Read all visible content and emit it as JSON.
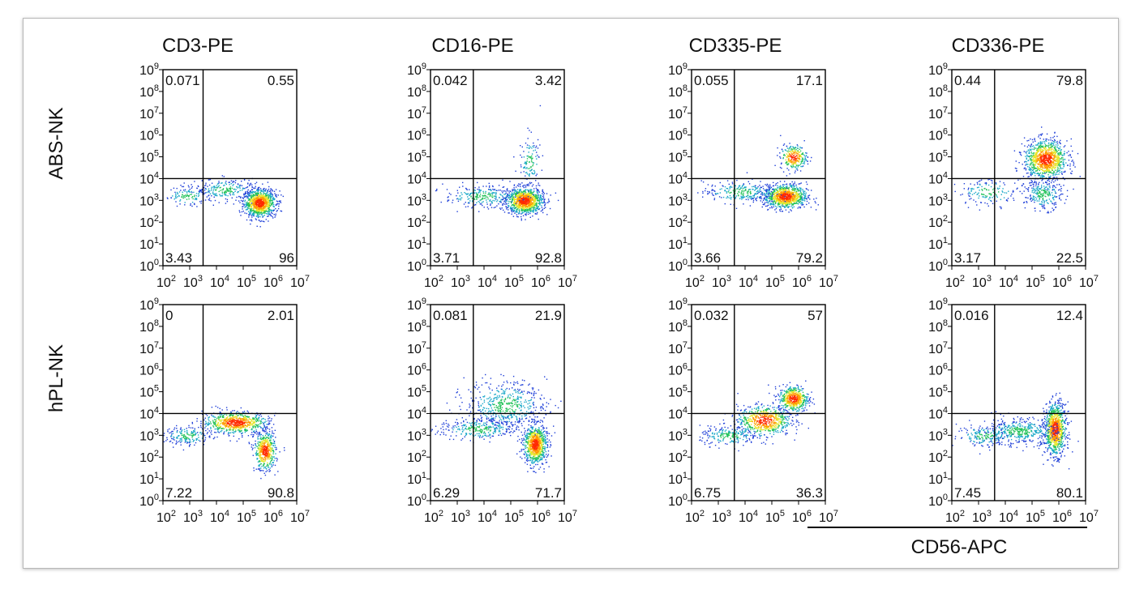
{
  "figure": {
    "x_axis_label": "CD56-APC",
    "column_titles": [
      "CD3-PE",
      "CD16-PE",
      "CD335-PE",
      "CD336-PE"
    ],
    "row_titles": [
      "ABS-NK",
      "hPL-NK"
    ]
  },
  "chart_data": [
    {
      "type": "scatter",
      "row": "ABS-NK",
      "column": "CD3-PE",
      "xlabel": "CD56-APC",
      "ylabel": "CD3-PE",
      "x_log_range": [
        2,
        7
      ],
      "y_log_range": [
        0,
        9
      ],
      "x_gate": 3.5,
      "y_gate": 4.0,
      "quadrants": {
        "upper_left": "0.071",
        "upper_right": "0.55",
        "lower_left": "3.43",
        "lower_right": "96"
      },
      "populations": [
        {
          "x": 5.6,
          "y": 2.9,
          "sx": 0.3,
          "sy": 0.32,
          "n": 1000,
          "core": 1
        },
        {
          "x": 4.3,
          "y": 3.5,
          "sx": 0.55,
          "sy": 0.25,
          "n": 220,
          "core": 0
        },
        {
          "x": 2.9,
          "y": 3.2,
          "sx": 0.45,
          "sy": 0.22,
          "n": 120,
          "core": 0
        }
      ]
    },
    {
      "type": "scatter",
      "row": "ABS-NK",
      "column": "CD16-PE",
      "xlabel": "CD56-APC",
      "ylabel": "CD16-PE",
      "x_log_range": [
        2,
        7
      ],
      "y_log_range": [
        0,
        9
      ],
      "x_gate": 3.6,
      "y_gate": 4.0,
      "quadrants": {
        "upper_left": "0.042",
        "upper_right": "3.42",
        "lower_left": "3.71",
        "lower_right": "92.8"
      },
      "populations": [
        {
          "x": 5.5,
          "y": 3.0,
          "sx": 0.35,
          "sy": 0.3,
          "n": 1000,
          "core": 1
        },
        {
          "x": 5.7,
          "y": 4.8,
          "sx": 0.2,
          "sy": 0.6,
          "n": 120,
          "core": 0
        },
        {
          "x": 3.9,
          "y": 3.2,
          "sx": 0.7,
          "sy": 0.25,
          "n": 260,
          "core": 0
        }
      ]
    },
    {
      "type": "scatter",
      "row": "ABS-NK",
      "column": "CD335-PE",
      "xlabel": "CD56-APC",
      "ylabel": "CD335-PE",
      "x_log_range": [
        2,
        7
      ],
      "y_log_range": [
        0,
        9
      ],
      "x_gate": 3.6,
      "y_gate": 4.0,
      "quadrants": {
        "upper_left": "0.055",
        "upper_right": "17.1",
        "lower_left": "3.66",
        "lower_right": "79.2"
      },
      "populations": [
        {
          "x": 5.5,
          "y": 3.2,
          "sx": 0.4,
          "sy": 0.28,
          "n": 900,
          "core": 1
        },
        {
          "x": 5.8,
          "y": 5.0,
          "sx": 0.25,
          "sy": 0.28,
          "n": 260,
          "core": 1
        },
        {
          "x": 3.8,
          "y": 3.4,
          "sx": 0.7,
          "sy": 0.25,
          "n": 260,
          "core": 0
        }
      ]
    },
    {
      "type": "scatter",
      "row": "ABS-NK",
      "column": "CD336-PE",
      "xlabel": "CD56-APC",
      "ylabel": "CD336-PE",
      "x_log_range": [
        2,
        7
      ],
      "y_log_range": [
        0,
        9
      ],
      "x_gate": 3.6,
      "y_gate": 4.0,
      "quadrants": {
        "upper_left": "0.44",
        "upper_right": "79.8",
        "lower_left": "3.17",
        "lower_right": "22.5"
      },
      "populations": [
        {
          "x": 5.5,
          "y": 4.9,
          "sx": 0.4,
          "sy": 0.45,
          "n": 1000,
          "core": 1
        },
        {
          "x": 5.4,
          "y": 3.3,
          "sx": 0.35,
          "sy": 0.35,
          "n": 260,
          "core": 0
        },
        {
          "x": 3.4,
          "y": 3.4,
          "sx": 0.6,
          "sy": 0.3,
          "n": 150,
          "core": 0
        }
      ]
    },
    {
      "type": "scatter",
      "row": "hPL-NK",
      "column": "CD3-PE",
      "xlabel": "CD56-APC",
      "ylabel": "CD3-PE",
      "x_log_range": [
        2,
        7
      ],
      "y_log_range": [
        0,
        9
      ],
      "x_gate": 3.5,
      "y_gate": 4.0,
      "quadrants": {
        "upper_left": "0",
        "upper_right": "2.01",
        "lower_left": "7.22",
        "lower_right": "90.8"
      },
      "populations": [
        {
          "x": 4.7,
          "y": 3.6,
          "sx": 0.6,
          "sy": 0.25,
          "n": 700,
          "core": 1
        },
        {
          "x": 5.8,
          "y": 2.3,
          "sx": 0.2,
          "sy": 0.45,
          "n": 500,
          "core": 1
        },
        {
          "x": 2.9,
          "y": 3.0,
          "sx": 0.45,
          "sy": 0.22,
          "n": 180,
          "core": 0
        }
      ]
    },
    {
      "type": "scatter",
      "row": "hPL-NK",
      "column": "CD16-PE",
      "xlabel": "CD56-APC",
      "ylabel": "CD16-PE",
      "x_log_range": [
        2,
        7
      ],
      "y_log_range": [
        0,
        9
      ],
      "x_gate": 3.6,
      "y_gate": 4.0,
      "quadrants": {
        "upper_left": "0.081",
        "upper_right": "21.9",
        "lower_left": "6.29",
        "lower_right": "71.7"
      },
      "populations": [
        {
          "x": 5.9,
          "y": 2.6,
          "sx": 0.22,
          "sy": 0.45,
          "n": 800,
          "core": 1
        },
        {
          "x": 4.8,
          "y": 4.4,
          "sx": 0.75,
          "sy": 0.55,
          "n": 520,
          "core": 0
        },
        {
          "x": 3.8,
          "y": 3.3,
          "sx": 0.75,
          "sy": 0.25,
          "n": 300,
          "core": 0
        }
      ]
    },
    {
      "type": "scatter",
      "row": "hPL-NK",
      "column": "CD335-PE",
      "xlabel": "CD56-APC",
      "ylabel": "CD335-PE",
      "x_log_range": [
        2,
        7
      ],
      "y_log_range": [
        0,
        9
      ],
      "x_gate": 3.6,
      "y_gate": 4.0,
      "quadrants": {
        "upper_left": "0.032",
        "upper_right": "57",
        "lower_left": "6.75",
        "lower_right": "36.3"
      },
      "populations": [
        {
          "x": 5.8,
          "y": 4.7,
          "sx": 0.28,
          "sy": 0.3,
          "n": 500,
          "core": 1
        },
        {
          "x": 4.7,
          "y": 3.7,
          "sx": 0.5,
          "sy": 0.35,
          "n": 600,
          "core": 1
        },
        {
          "x": 3.4,
          "y": 3.0,
          "sx": 0.55,
          "sy": 0.22,
          "n": 220,
          "core": 0
        }
      ]
    },
    {
      "type": "scatter",
      "row": "hPL-NK",
      "column": "CD336-PE",
      "xlabel": "CD56-APC",
      "ylabel": "CD336-PE",
      "x_log_range": [
        2,
        7
      ],
      "y_log_range": [
        0,
        9
      ],
      "x_gate": 3.6,
      "y_gate": 4.0,
      "quadrants": {
        "upper_left": "0.016",
        "upper_right": "12.4",
        "lower_left": "7.45",
        "lower_right": "80.1"
      },
      "populations": [
        {
          "x": 5.85,
          "y": 3.3,
          "sx": 0.2,
          "sy": 0.6,
          "n": 900,
          "core": 1
        },
        {
          "x": 4.5,
          "y": 3.2,
          "sx": 0.7,
          "sy": 0.3,
          "n": 450,
          "core": 0
        },
        {
          "x": 3.2,
          "y": 3.0,
          "sx": 0.5,
          "sy": 0.25,
          "n": 160,
          "core": 0
        }
      ]
    }
  ]
}
